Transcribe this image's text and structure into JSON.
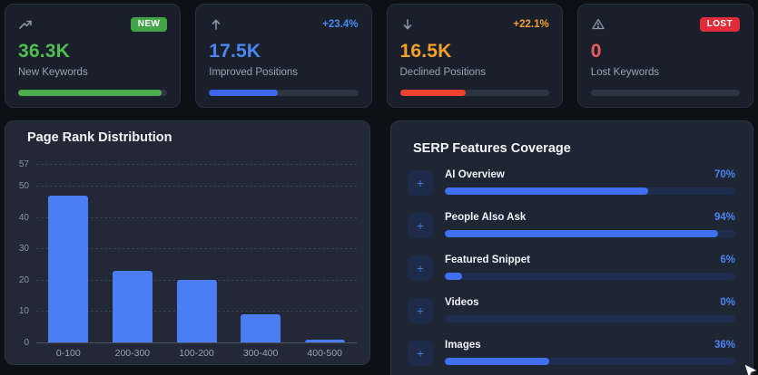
{
  "colors": {
    "page_bg": "#0d1117",
    "card_bg": "#1a202b",
    "panel_bg": "#222835",
    "green": "#53bd51",
    "green_badge": "#43a547",
    "green_bar": "#4cae4f",
    "blue": "#4a87f5",
    "blue_bar": "#3d66ee",
    "orange": "#f5a02c",
    "red_bar": "#ee4330",
    "red_badge": "#e12b38",
    "red_value": "#f05c5e",
    "serp_fill": "#3f70f2",
    "chart_bar": "#4b7ef5"
  },
  "stat_cards": [
    {
      "icon": "trending-up-icon",
      "badge": "NEW",
      "badge_color": "#43a547",
      "value": "36.3K",
      "value_color": "#53bd51",
      "label": "New Keywords",
      "bar_color": "#4cae4f",
      "bar_pct": 96
    },
    {
      "icon": "arrow-up-icon",
      "delta": "+23.4%",
      "delta_color": "#4a87f5",
      "value": "17.5K",
      "value_color": "#4a87f5",
      "label": "Improved Positions",
      "bar_color": "#3d66ee",
      "bar_pct": 46
    },
    {
      "icon": "arrow-down-icon",
      "delta": "+22.1%",
      "delta_color": "#f5a02c",
      "value": "16.5K",
      "value_color": "#f5a02c",
      "label": "Declined Positions",
      "bar_color": "#ee4330",
      "bar_pct": 44
    },
    {
      "icon": "warning-icon",
      "badge": "LOST",
      "badge_color": "#e12b38",
      "value": "0",
      "value_color": "#f05c5e",
      "label": "Lost Keywords",
      "bar_color": "#39414f",
      "bar_pct": 0
    }
  ],
  "chart_data": {
    "type": "bar",
    "title": "Page Rank Distribution",
    "categories": [
      "0-100",
      "200-300",
      "100-200",
      "300-400",
      "400-500"
    ],
    "values": [
      47,
      23,
      20,
      9,
      1
    ],
    "xlabel": "",
    "ylabel": "",
    "y_ticks": [
      57,
      50,
      40,
      30,
      20,
      10,
      0
    ],
    "ylim": [
      0,
      57
    ],
    "grid": "horizontal-dashed",
    "legend": "none",
    "bar_color": "#4b7ef5"
  },
  "serp_panel": {
    "title": "SERP Features Coverage",
    "plus_symbol": "+",
    "items": [
      {
        "label": "AI Overview",
        "percent": "70%",
        "value": 70
      },
      {
        "label": "People Also Ask",
        "percent": "94%",
        "value": 94
      },
      {
        "label": "Featured Snippet",
        "percent": "6%",
        "value": 6
      },
      {
        "label": "Videos",
        "percent": "0%",
        "value": 0
      },
      {
        "label": "Images",
        "percent": "36%",
        "value": 36
      }
    ]
  }
}
